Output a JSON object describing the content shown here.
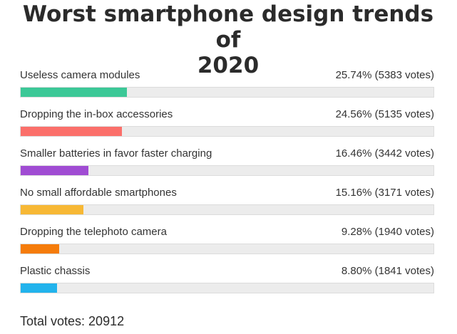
{
  "poll": {
    "title_line1": "Worst smartphone design trends of",
    "title_line2": "2020",
    "options": [
      {
        "label": "Useless camera modules",
        "result": "25.74% (5383 votes)",
        "share": 0.2574,
        "color": "#3cc897"
      },
      {
        "label": "Dropping the in-box accessories",
        "result": "24.56% (5135 votes)",
        "share": 0.2456,
        "color": "#fb6f6a"
      },
      {
        "label": "Smaller batteries in favor faster charging",
        "result": "16.46% (3442 votes)",
        "share": 0.1646,
        "color": "#a04cd3"
      },
      {
        "label": "No small affordable smartphones",
        "result": "15.16% (3171 votes)",
        "share": 0.1516,
        "color": "#f7b835"
      },
      {
        "label": "Dropping the telephoto camera",
        "result": "9.28% (1940 votes)",
        "share": 0.0928,
        "color": "#f57c0b"
      },
      {
        "label": "Plastic chassis",
        "result": "8.80% (1841 votes)",
        "share": 0.088,
        "color": "#22b3ec"
      }
    ],
    "total_label": "Total votes: 20912"
  }
}
